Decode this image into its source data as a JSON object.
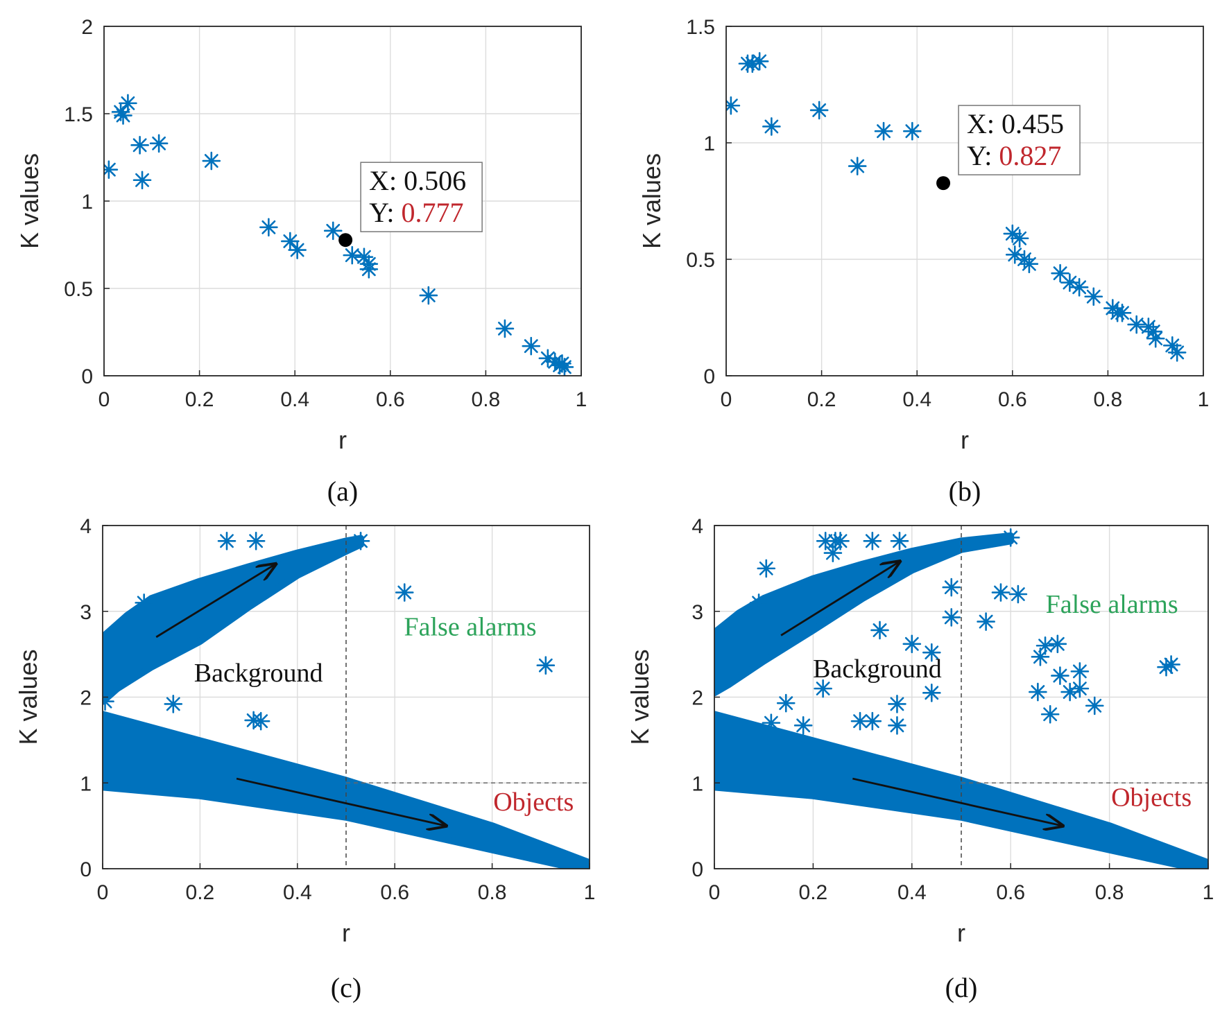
{
  "figure": {
    "colors": {
      "marker": "#0072BD",
      "grid": "#dcdcdc",
      "axis": "#262626",
      "datatip_value": "#c0272d",
      "false_alarms": "#2ca35a",
      "objects": "#c0272d",
      "background_text": "#111111",
      "datatip_point": "#000000"
    },
    "icons": {
      "marker": "asterisk-marker",
      "datatip": "filled-circle"
    }
  },
  "chart_data": [
    {
      "panel": "a",
      "type": "scatter",
      "caption": "(a)",
      "xlabel": "r",
      "ylabel": "K values",
      "xlim": [
        0,
        1
      ],
      "ylim": [
        0,
        2
      ],
      "xticks": [
        0,
        0.2,
        0.4,
        0.6,
        0.8,
        1
      ],
      "xtick_labels": [
        "0",
        "0.2",
        "0.4",
        "0.6",
        "0.8",
        "1"
      ],
      "yticks": [
        0,
        0.5,
        1,
        1.5,
        2
      ],
      "ytick_labels": [
        "0",
        "0.5",
        "1",
        "1.5",
        "2"
      ],
      "grid": true,
      "points": [
        [
          0.01,
          1.18
        ],
        [
          0.035,
          1.51
        ],
        [
          0.04,
          1.49
        ],
        [
          0.05,
          1.56
        ],
        [
          0.075,
          1.32
        ],
        [
          0.08,
          1.12
        ],
        [
          0.115,
          1.33
        ],
        [
          0.225,
          1.23
        ],
        [
          0.345,
          0.85
        ],
        [
          0.39,
          0.77
        ],
        [
          0.405,
          0.72
        ],
        [
          0.48,
          0.83
        ],
        [
          0.52,
          0.69
        ],
        [
          0.545,
          0.68
        ],
        [
          0.555,
          0.64
        ],
        [
          0.555,
          0.61
        ],
        [
          0.68,
          0.46
        ],
        [
          0.84,
          0.27
        ],
        [
          0.895,
          0.17
        ],
        [
          0.93,
          0.1
        ],
        [
          0.945,
          0.08
        ],
        [
          0.955,
          0.06
        ],
        [
          0.96,
          0.07
        ],
        [
          0.965,
          0.05
        ]
      ],
      "datatip": {
        "x": 0.506,
        "y": 0.777,
        "x_prefix": "X: ",
        "x_text": "0.506",
        "y_prefix": "Y: ",
        "y_text": "0.777"
      }
    },
    {
      "panel": "b",
      "type": "scatter",
      "caption": "(b)",
      "xlabel": "r",
      "ylabel": "K values",
      "xlim": [
        0,
        1
      ],
      "ylim": [
        0,
        1.5
      ],
      "xticks": [
        0,
        0.2,
        0.4,
        0.6,
        0.8,
        1
      ],
      "xtick_labels": [
        "0",
        "0.2",
        "0.4",
        "0.6",
        "0.8",
        "1"
      ],
      "yticks": [
        0,
        0.5,
        1,
        1.5
      ],
      "ytick_labels": [
        "0",
        "0.5",
        "1",
        "1.5"
      ],
      "grid": true,
      "points": [
        [
          0.01,
          1.16
        ],
        [
          0.045,
          1.34
        ],
        [
          0.055,
          1.34
        ],
        [
          0.07,
          1.35
        ],
        [
          0.095,
          1.07
        ],
        [
          0.195,
          1.14
        ],
        [
          0.275,
          0.9
        ],
        [
          0.33,
          1.05
        ],
        [
          0.39,
          1.05
        ],
        [
          0.6,
          0.61
        ],
        [
          0.615,
          0.59
        ],
        [
          0.605,
          0.52
        ],
        [
          0.625,
          0.5
        ],
        [
          0.635,
          0.48
        ],
        [
          0.7,
          0.44
        ],
        [
          0.72,
          0.4
        ],
        [
          0.74,
          0.38
        ],
        [
          0.77,
          0.34
        ],
        [
          0.81,
          0.29
        ],
        [
          0.82,
          0.27
        ],
        [
          0.83,
          0.27
        ],
        [
          0.86,
          0.22
        ],
        [
          0.885,
          0.21
        ],
        [
          0.895,
          0.19
        ],
        [
          0.9,
          0.16
        ],
        [
          0.935,
          0.13
        ],
        [
          0.945,
          0.1
        ]
      ],
      "datatip": {
        "x": 0.455,
        "y": 0.827,
        "x_prefix": "X: ",
        "x_text": "0.455",
        "y_prefix": "Y: ",
        "y_text": "0.827"
      }
    },
    {
      "panel": "c",
      "type": "scatter",
      "caption": "(c)",
      "xlabel": "r",
      "ylabel": "K values",
      "xlim": [
        0,
        1
      ],
      "ylim": [
        0,
        4
      ],
      "xticks": [
        0,
        0.2,
        0.4,
        0.6,
        0.8,
        1
      ],
      "xtick_labels": [
        "0",
        "0.2",
        "0.4",
        "0.6",
        "0.8",
        "1"
      ],
      "yticks": [
        0,
        1,
        2,
        3,
        4
      ],
      "ytick_labels": [
        "0",
        "1",
        "2",
        "3",
        "4"
      ],
      "grid": true,
      "upper_band": {
        "top": [
          [
            0,
            2.7
          ],
          [
            0.05,
            2.95
          ],
          [
            0.1,
            3.15
          ],
          [
            0.2,
            3.35
          ],
          [
            0.3,
            3.52
          ],
          [
            0.4,
            3.68
          ],
          [
            0.5,
            3.82
          ],
          [
            0.53,
            3.85
          ]
        ],
        "bottom": [
          [
            0.53,
            3.78
          ],
          [
            0.5,
            3.7
          ],
          [
            0.4,
            3.42
          ],
          [
            0.3,
            3.05
          ],
          [
            0.2,
            2.65
          ],
          [
            0.1,
            2.35
          ],
          [
            0.03,
            2.1
          ],
          [
            0,
            1.95
          ]
        ]
      },
      "lower_band": {
        "top": [
          [
            0,
            1.8
          ],
          [
            0.5,
            1.03
          ],
          [
            0.8,
            0.5
          ],
          [
            1,
            0.07
          ]
        ],
        "bottom": [
          [
            1,
            -0.03
          ],
          [
            0.8,
            0.22
          ],
          [
            0.5,
            0.6
          ],
          [
            0.2,
            0.85
          ],
          [
            0,
            0.95
          ]
        ]
      },
      "points": [
        [
          0.255,
          3.82
        ],
        [
          0.315,
          3.82
        ],
        [
          0.53,
          3.82
        ],
        [
          0.62,
          3.22
        ],
        [
          0.91,
          2.37
        ],
        [
          0.145,
          1.92
        ],
        [
          0.31,
          1.73
        ],
        [
          0.325,
          1.72
        ],
        [
          0.085,
          3.1
        ],
        [
          0.005,
          1.95
        ]
      ],
      "arrows": [
        {
          "from": [
            0.11,
            2.7
          ],
          "to": [
            0.355,
            3.55
          ]
        },
        {
          "from": [
            0.275,
            1.05
          ],
          "to": [
            0.705,
            0.5
          ]
        }
      ],
      "threshold_x": 0.5,
      "threshold_y": 1,
      "annotations": [
        {
          "text": "False alarms",
          "x": 0.755,
          "y": 2.72,
          "role": "false_alarms"
        },
        {
          "text": "Background",
          "x": 0.32,
          "y": 2.18,
          "role": "background_text"
        },
        {
          "text": "Objects",
          "x": 0.885,
          "y": 0.68,
          "role": "objects"
        }
      ]
    },
    {
      "panel": "d",
      "type": "scatter",
      "caption": "(d)",
      "xlabel": "r",
      "ylabel": "K values",
      "xlim": [
        0,
        1
      ],
      "ylim": [
        0,
        4
      ],
      "xticks": [
        0,
        0.2,
        0.4,
        0.6,
        0.8,
        1
      ],
      "xtick_labels": [
        "0",
        "0.2",
        "0.4",
        "0.6",
        "0.8",
        "1"
      ],
      "yticks": [
        0,
        1,
        2,
        3,
        4
      ],
      "ytick_labels": [
        "0",
        "1",
        "2",
        "3",
        "4"
      ],
      "grid": true,
      "upper_band": {
        "top": [
          [
            0,
            2.75
          ],
          [
            0.05,
            2.98
          ],
          [
            0.1,
            3.15
          ],
          [
            0.2,
            3.38
          ],
          [
            0.3,
            3.55
          ],
          [
            0.4,
            3.7
          ],
          [
            0.5,
            3.82
          ],
          [
            0.6,
            3.88
          ]
        ],
        "bottom": [
          [
            0.6,
            3.82
          ],
          [
            0.5,
            3.72
          ],
          [
            0.4,
            3.48
          ],
          [
            0.3,
            3.15
          ],
          [
            0.2,
            2.78
          ],
          [
            0.1,
            2.42
          ],
          [
            0.03,
            2.15
          ],
          [
            0,
            2.05
          ]
        ]
      },
      "lower_band": {
        "top": [
          [
            0,
            1.8
          ],
          [
            0.5,
            1.03
          ],
          [
            0.8,
            0.5
          ],
          [
            1,
            0.07
          ]
        ],
        "bottom": [
          [
            1,
            -0.03
          ],
          [
            0.8,
            0.22
          ],
          [
            0.5,
            0.6
          ],
          [
            0.2,
            0.85
          ],
          [
            0,
            0.95
          ]
        ]
      },
      "points": [
        [
          0.105,
          3.5
        ],
        [
          0.09,
          3.1
        ],
        [
          0.225,
          3.82
        ],
        [
          0.245,
          3.82
        ],
        [
          0.255,
          3.82
        ],
        [
          0.24,
          3.68
        ],
        [
          0.32,
          3.82
        ],
        [
          0.375,
          3.82
        ],
        [
          0.48,
          3.28
        ],
        [
          0.48,
          2.93
        ],
        [
          0.58,
          3.22
        ],
        [
          0.615,
          3.2
        ],
        [
          0.55,
          2.88
        ],
        [
          0.6,
          3.86
        ],
        [
          0.335,
          2.78
        ],
        [
          0.4,
          2.62
        ],
        [
          0.44,
          2.52
        ],
        [
          0.44,
          2.05
        ],
        [
          0.22,
          2.1
        ],
        [
          0.145,
          1.93
        ],
        [
          0.295,
          1.72
        ],
        [
          0.32,
          1.72
        ],
        [
          0.37,
          1.92
        ],
        [
          0.37,
          1.67
        ],
        [
          0.18,
          1.67
        ],
        [
          0.115,
          1.7
        ],
        [
          0.66,
          2.47
        ],
        [
          0.67,
          2.6
        ],
        [
          0.695,
          2.62
        ],
        [
          0.7,
          2.25
        ],
        [
          0.655,
          2.06
        ],
        [
          0.68,
          1.8
        ],
        [
          0.72,
          2.06
        ],
        [
          0.74,
          2.3
        ],
        [
          0.74,
          2.1
        ],
        [
          0.77,
          1.9
        ],
        [
          0.915,
          2.35
        ],
        [
          0.925,
          2.38
        ]
      ],
      "arrows": [
        {
          "from": [
            0.135,
            2.72
          ],
          "to": [
            0.375,
            3.58
          ]
        },
        {
          "from": [
            0.28,
            1.05
          ],
          "to": [
            0.705,
            0.5
          ]
        }
      ],
      "threshold_x": 0.5,
      "threshold_y": 1,
      "annotations": [
        {
          "text": "False alarms",
          "x": 0.805,
          "y": 2.98,
          "role": "false_alarms"
        },
        {
          "text": "Background",
          "x": 0.33,
          "y": 2.23,
          "role": "background_text"
        },
        {
          "text": "Objects",
          "x": 0.885,
          "y": 0.73,
          "role": "objects"
        }
      ]
    }
  ]
}
